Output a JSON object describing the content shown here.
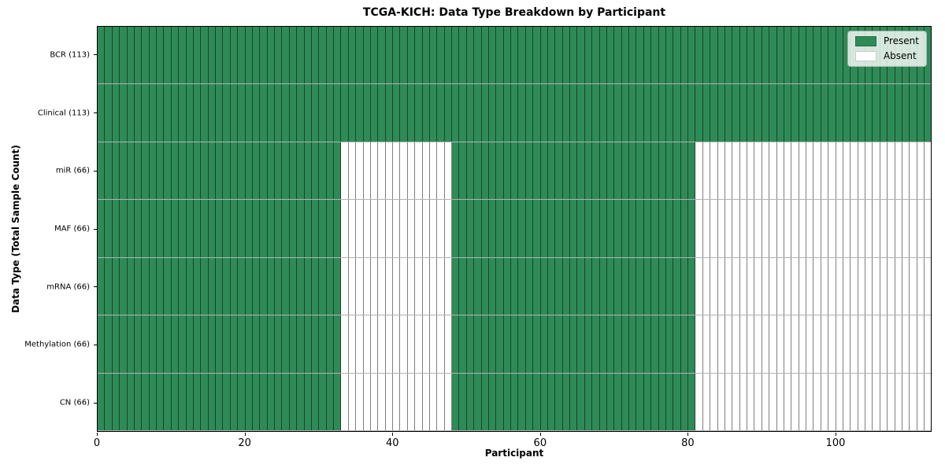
{
  "chart_data": {
    "type": "heatmap",
    "title": "TCGA-KICH: Data Type Breakdown by Participant",
    "xlabel": "Participant",
    "ylabel": "Data Type (Total Sample Count)",
    "x_ticks": [
      0,
      20,
      40,
      60,
      80,
      100
    ],
    "x_range": [
      0,
      113
    ],
    "n_participants": 113,
    "grid": false,
    "legend": {
      "position": "upper right",
      "entries": [
        {
          "label": "Present",
          "color": "#2e8b57"
        },
        {
          "label": "Absent",
          "color": "#ffffff"
        }
      ]
    },
    "rows": [
      {
        "label": "BCR (113)",
        "total": 113,
        "present_ranges": [
          [
            0,
            113
          ]
        ]
      },
      {
        "label": "Clinical (113)",
        "total": 113,
        "present_ranges": [
          [
            0,
            113
          ]
        ]
      },
      {
        "label": "miR (66)",
        "total": 66,
        "present_ranges": [
          [
            0,
            33
          ],
          [
            48,
            81
          ]
        ]
      },
      {
        "label": "MAF (66)",
        "total": 66,
        "present_ranges": [
          [
            0,
            33
          ],
          [
            48,
            81
          ]
        ]
      },
      {
        "label": "mRNA (66)",
        "total": 66,
        "present_ranges": [
          [
            0,
            33
          ],
          [
            48,
            81
          ]
        ]
      },
      {
        "label": "Methylation (66)",
        "total": 66,
        "present_ranges": [
          [
            0,
            33
          ],
          [
            48,
            81
          ]
        ]
      },
      {
        "label": "CN (66)",
        "total": 66,
        "present_ranges": [
          [
            0,
            33
          ],
          [
            48,
            81
          ]
        ]
      }
    ],
    "colors": {
      "present": "#2e8b57",
      "absent": "#ffffff",
      "cell_edge": "rgba(0,0,0,0.5)",
      "row_edge": "rgba(0,0,0,0.3)",
      "axis": "#000000"
    }
  }
}
